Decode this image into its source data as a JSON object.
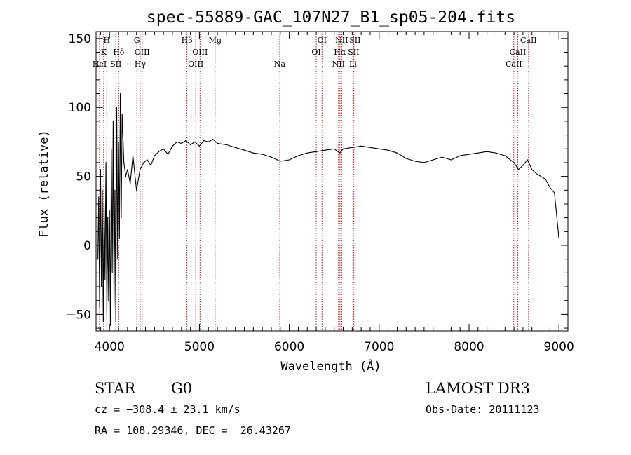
{
  "chart_data": {
    "type": "line",
    "title": "spec-55889-GAC_107N27_B1_sp05-204.fits",
    "xlabel": "Wavelength (Å)",
    "ylabel": "Flux (relative)",
    "xlim": [
      3850,
      9100
    ],
    "ylim": [
      -62,
      155
    ],
    "xticks": [
      4000,
      5000,
      6000,
      7000,
      8000,
      9000
    ],
    "yticks": [
      -50,
      0,
      50,
      100,
      150
    ],
    "spectrum": {
      "name": "flux",
      "x": [
        3870,
        3880,
        3890,
        3900,
        3910,
        3920,
        3930,
        3940,
        3950,
        3960,
        3970,
        3980,
        3990,
        4000,
        4010,
        4020,
        4030,
        4040,
        4050,
        4060,
        4070,
        4080,
        4090,
        4100,
        4110,
        4120,
        4130,
        4140,
        4160,
        4180,
        4200,
        4230,
        4260,
        4300,
        4340,
        4380,
        4420,
        4460,
        4500,
        4550,
        4600,
        4650,
        4700,
        4750,
        4800,
        4850,
        4900,
        4950,
        5000,
        5050,
        5100,
        5150,
        5200,
        5300,
        5400,
        5500,
        5600,
        5700,
        5800,
        5900,
        6000,
        6100,
        6200,
        6300,
        6400,
        6500,
        6563,
        6600,
        6700,
        6800,
        6900,
        7000,
        7100,
        7200,
        7300,
        7400,
        7500,
        7600,
        7700,
        7800,
        7900,
        8000,
        8100,
        8200,
        8300,
        8400,
        8500,
        8550,
        8600,
        8650,
        8700,
        8750,
        8800,
        8850,
        8900,
        8950,
        9000
      ],
      "y": [
        -10,
        35,
        -45,
        55,
        -30,
        40,
        -55,
        30,
        -25,
        60,
        -50,
        20,
        -40,
        25,
        -58,
        70,
        -20,
        90,
        -45,
        40,
        -55,
        100,
        -10,
        75,
        5,
        110,
        20,
        95,
        60,
        50,
        55,
        45,
        65,
        40,
        55,
        60,
        62,
        58,
        65,
        68,
        70,
        66,
        72,
        75,
        74,
        76,
        73,
        75,
        72,
        76,
        75,
        77,
        74,
        73,
        71,
        69,
        67,
        66,
        64,
        61,
        62,
        65,
        67,
        68,
        69,
        70,
        67,
        70,
        71,
        72,
        71,
        70,
        69,
        67,
        63,
        61,
        60,
        62,
        64,
        62,
        65,
        66,
        67,
        68,
        67,
        65,
        60,
        55,
        58,
        62,
        55,
        52,
        50,
        48,
        42,
        38,
        5
      ]
    },
    "spectral_lines": [
      {
        "label": "HeI",
        "wavelength": 3889,
        "row": 2
      },
      {
        "label": "K",
        "wavelength": 3934,
        "row": 1
      },
      {
        "label": "H",
        "wavelength": 3969,
        "row": 0
      },
      {
        "label": "SII",
        "wavelength": 4070,
        "row": 2
      },
      {
        "label": "Hδ",
        "wavelength": 4102,
        "row": 1
      },
      {
        "label": "G",
        "wavelength": 4304,
        "row": 0
      },
      {
        "label": "Hγ",
        "wavelength": 4341,
        "row": 2
      },
      {
        "label": "OIII",
        "wavelength": 4363,
        "row": 1
      },
      {
        "label": "Hβ",
        "wavelength": 4861,
        "row": 0
      },
      {
        "label": "OIII",
        "wavelength": 4959,
        "row": 2
      },
      {
        "label": "OIII",
        "wavelength": 5007,
        "row": 1
      },
      {
        "label": "Mg",
        "wavelength": 5175,
        "row": 0
      },
      {
        "label": "Na",
        "wavelength": 5894,
        "row": 2
      },
      {
        "label": "OI",
        "wavelength": 6300,
        "row": 1
      },
      {
        "label": "OI",
        "wavelength": 6364,
        "row": 0
      },
      {
        "label": "NII",
        "wavelength": 6548,
        "row": 2
      },
      {
        "label": "Hα",
        "wavelength": 6563,
        "row": 1
      },
      {
        "label": "NII",
        "wavelength": 6583,
        "row": 0
      },
      {
        "label": "Li",
        "wavelength": 6708,
        "row": 2
      },
      {
        "label": "SII",
        "wavelength": 6716,
        "row": 1
      },
      {
        "label": "SII",
        "wavelength": 6731,
        "row": 0
      },
      {
        "label": "CaII",
        "wavelength": 8498,
        "row": 2
      },
      {
        "label": "CaII",
        "wavelength": 8542,
        "row": 1
      },
      {
        "label": "CaII",
        "wavelength": 8662,
        "row": 0
      }
    ],
    "line_marker_color": "#b22222"
  },
  "info": {
    "class": "STAR",
    "subclass": "G0",
    "survey": "LAMOST DR3",
    "redshift": "cz = −308.4 ± 23.1 km/s",
    "obs_date": "Obs-Date: 20111123",
    "coords": "RA = 108.29346, DEC =  26.43267"
  }
}
